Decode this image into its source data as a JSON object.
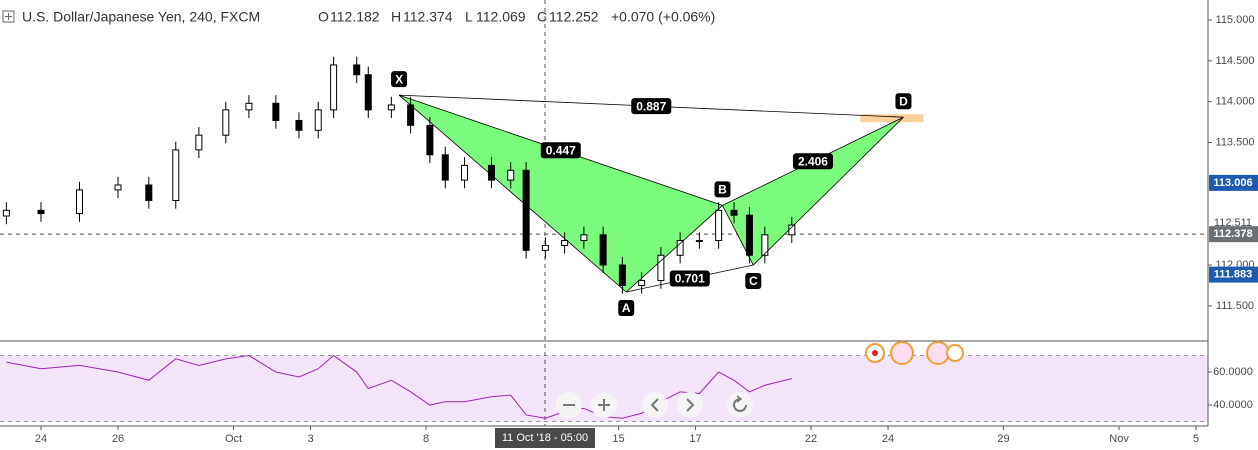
{
  "chart_data": {
    "type": "candlestick",
    "title": "U.S. Dollar/Japanese Yen, 240, FXCM",
    "ohlc_header": {
      "o_label": "O",
      "o": "112.182",
      "h_label": "H",
      "h": "112.374",
      "l_label": "L",
      "l": "112.069",
      "c_label": "C",
      "c": "112.252",
      "change": "+0.070 (+0.06%)"
    },
    "x": [
      -0.9,
      0.0,
      1.0,
      2.0,
      2.8,
      3.5,
      4.1,
      4.8,
      5.4,
      6.1,
      6.7,
      7.2,
      7.6,
      8.2,
      8.5,
      9.1,
      9.6,
      10.1,
      10.5,
      11.0,
      11.7,
      12.2,
      12.6,
      13.1,
      13.6,
      14.1,
      14.6,
      15.1,
      15.6,
      16.1,
      16.6,
      17.1,
      17.6,
      18.0,
      18.4,
      18.8,
      19.5
    ],
    "open": [
      112.6,
      112.67,
      112.63,
      112.92,
      112.98,
      112.79,
      113.41,
      113.59,
      113.9,
      113.98,
      113.77,
      113.65,
      113.9,
      114.45,
      114.33,
      113.9,
      113.96,
      113.71,
      113.35,
      113.04,
      113.22,
      113.04,
      113.16,
      112.18,
      112.24,
      112.3,
      112.37,
      112.0,
      111.75,
      111.81,
      112.12,
      112.3,
      112.3,
      112.67,
      112.61,
      112.12,
      112.37
    ],
    "high": [
      112.77,
      112.77,
      113.02,
      113.08,
      113.08,
      113.51,
      113.69,
      114.0,
      114.08,
      114.08,
      113.87,
      114.0,
      114.55,
      114.55,
      114.43,
      114.06,
      114.06,
      113.81,
      113.45,
      113.32,
      113.32,
      113.26,
      113.26,
      112.34,
      112.4,
      112.47,
      112.47,
      112.1,
      111.91,
      112.22,
      112.4,
      112.4,
      112.77,
      112.77,
      112.71,
      112.47,
      112.59
    ],
    "low": [
      112.5,
      112.53,
      112.53,
      112.82,
      112.69,
      112.69,
      113.31,
      113.49,
      113.8,
      113.67,
      113.55,
      113.55,
      113.8,
      114.23,
      113.8,
      113.8,
      113.61,
      113.25,
      112.94,
      112.94,
      112.94,
      112.94,
      112.08,
      112.08,
      112.14,
      112.2,
      111.9,
      111.65,
      111.65,
      111.71,
      112.02,
      112.2,
      112.2,
      112.51,
      112.02,
      112.02,
      112.27
    ],
    "close": [
      112.67,
      112.63,
      112.92,
      112.98,
      112.79,
      113.41,
      113.59,
      113.9,
      113.98,
      113.77,
      113.65,
      113.9,
      114.45,
      114.33,
      113.9,
      113.96,
      113.71,
      113.35,
      113.04,
      113.22,
      113.04,
      113.16,
      112.18,
      112.24,
      112.3,
      112.37,
      112.0,
      111.75,
      111.81,
      112.12,
      112.3,
      112.3,
      112.67,
      112.61,
      112.12,
      112.37,
      112.49
    ],
    "up_color": "#ffffff",
    "down_color": "#000000",
    "xlim": [
      -1.065,
      30.31
    ],
    "xticks": [
      {
        "value": 0,
        "label": "24"
      },
      {
        "value": 2,
        "label": "26"
      },
      {
        "value": 5,
        "label": "Oct"
      },
      {
        "value": 7,
        "label": "3"
      },
      {
        "value": 10,
        "label": "8"
      },
      {
        "value": 15,
        "label": "15"
      },
      {
        "value": 17,
        "label": "17"
      },
      {
        "value": 20,
        "label": "22"
      },
      {
        "value": 22,
        "label": "24"
      },
      {
        "value": 25,
        "label": "29"
      },
      {
        "value": 28,
        "label": "Nov"
      },
      {
        "value": 30,
        "label": "5"
      }
    ],
    "ylim": [
      111.07,
      115.245
    ],
    "yticks": [
      {
        "value": 111.5,
        "label": "111.500"
      },
      {
        "value": 112,
        "label": "112.000"
      },
      {
        "value": 113.5,
        "label": "113.500"
      },
      {
        "value": 114,
        "label": "114.000"
      },
      {
        "value": 114.5,
        "label": "114.500"
      },
      {
        "value": 115,
        "label": "115.000"
      }
    ],
    "price_markers": [
      {
        "value": 113.006,
        "label": "113.006",
        "color": "#1e5bb0"
      },
      {
        "value": 112.511,
        "label": "112.511",
        "color": null
      },
      {
        "value": 112.378,
        "label": "112.378",
        "color": "#6b7075"
      },
      {
        "value": 111.883,
        "label": "111.883",
        "color": "#1e5bb0"
      }
    ],
    "last_price": 112.378,
    "crosshair": {
      "x": 13.09,
      "label": "11 Oct '18 - 05:00"
    },
    "pattern": {
      "color": "#7cfc7c",
      "points": [
        {
          "label": "X",
          "x": 9.3,
          "price": 114.08
        },
        {
          "label": "A",
          "x": 15.2,
          "price": 111.67
        },
        {
          "label": "B",
          "x": 17.7,
          "price": 112.73
        },
        {
          "label": "C",
          "x": 18.5,
          "price": 112.0
        },
        {
          "label": "D",
          "x": 22.4,
          "price": 113.81
        }
      ],
      "ratios": [
        {
          "from": 0,
          "to": 4,
          "value": 0.887
        },
        {
          "from": 0,
          "to": 2,
          "value": 0.447
        },
        {
          "from": 2,
          "to": 4,
          "value": 2.406
        },
        {
          "from": 1,
          "to": 3,
          "value": 0.701
        }
      ]
    },
    "rsi": {
      "color": "#9c27b0",
      "band_color": "#f3e4fa",
      "band": [
        30,
        70
      ],
      "values": [
        66,
        62,
        64,
        60,
        55,
        68,
        64,
        68,
        70,
        60,
        57,
        62,
        70,
        60,
        50,
        55,
        48,
        40,
        42,
        42,
        45,
        46,
        34,
        32,
        36,
        38,
        33,
        32,
        35,
        42,
        48,
        47,
        60,
        55,
        48,
        52,
        56
      ],
      "ylim": [
        27.9,
        78.2
      ],
      "yticks": [
        {
          "value": 40,
          "label": "40.0000"
        },
        {
          "value": 60,
          "label": "60.0000"
        }
      ]
    }
  }
}
